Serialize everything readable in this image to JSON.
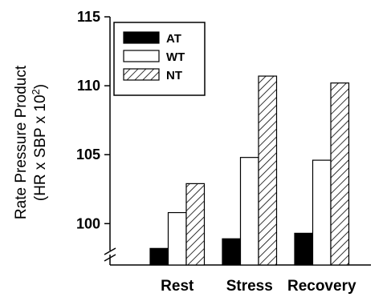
{
  "chart_data": {
    "type": "bar",
    "categories": [
      "Rest",
      "Stress",
      "Recovery"
    ],
    "series": [
      {
        "name": "AT",
        "values": [
          98.2,
          98.9,
          99.3
        ],
        "fill": "#000000",
        "pattern": "solid"
      },
      {
        "name": "WT",
        "values": [
          100.8,
          104.8,
          104.6
        ],
        "fill": "#ffffff",
        "pattern": "none"
      },
      {
        "name": "NT",
        "values": [
          102.9,
          110.7,
          110.2
        ],
        "fill": "#ffffff",
        "pattern": "diagonal-hatch"
      }
    ],
    "yticks": [
      "100",
      "105",
      "110",
      "115"
    ],
    "ylabel_line1": "Rate Pressure Product",
    "ylabel_line2_prefix": "(HR x SBP x 10",
    "ylabel_line2_sup": "2",
    "ylabel_line2_suffix": ")",
    "ylim": [
      97,
      115
    ],
    "axis_break": true,
    "legend_position": "top-left",
    "grid": false
  }
}
